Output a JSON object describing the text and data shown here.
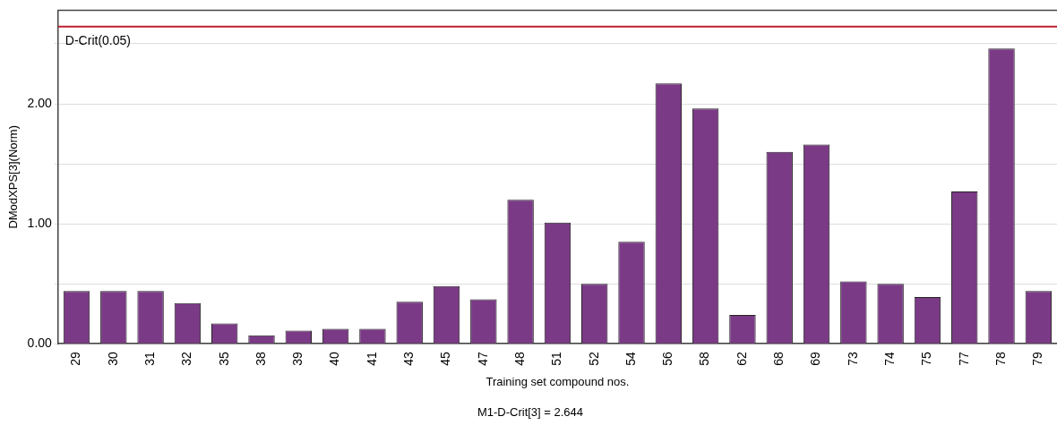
{
  "chart_data": {
    "type": "bar",
    "xlabel": "Training set compound nos.",
    "ylabel": "DModXPS[3](Norm)",
    "categories": [
      "29",
      "30",
      "31",
      "32",
      "35",
      "38",
      "39",
      "40",
      "41",
      "43",
      "45",
      "47",
      "48",
      "51",
      "52",
      "54",
      "56",
      "58",
      "62",
      "68",
      "69",
      "73",
      "74",
      "75",
      "77",
      "78",
      "79"
    ],
    "values": [
      0.44,
      0.44,
      0.44,
      0.34,
      0.17,
      0.07,
      0.11,
      0.125,
      0.125,
      0.35,
      0.48,
      0.37,
      1.2,
      1.01,
      0.5,
      0.85,
      2.17,
      1.96,
      0.24,
      1.6,
      1.66,
      0.52,
      0.5,
      0.39,
      1.27,
      2.46,
      0.44
    ],
    "color": "#7b3a86",
    "ylim": [
      0,
      2.78
    ],
    "yticks": [
      {
        "value": 0,
        "label": "0.00"
      },
      {
        "value": 0.5,
        "label": null
      },
      {
        "value": 1,
        "label": "1.00"
      },
      {
        "value": 1.5,
        "label": null
      },
      {
        "value": 2,
        "label": "2.00"
      },
      {
        "value": 2.5,
        "label": null
      }
    ],
    "grid": "y",
    "legend": false,
    "ref_lines": [
      {
        "axis": "y",
        "value": 2.644,
        "label": "D-Crit(0.05)",
        "color": "#c0202f"
      }
    ],
    "annotations": [
      "M1-D-Crit[3] = 2.644"
    ]
  }
}
